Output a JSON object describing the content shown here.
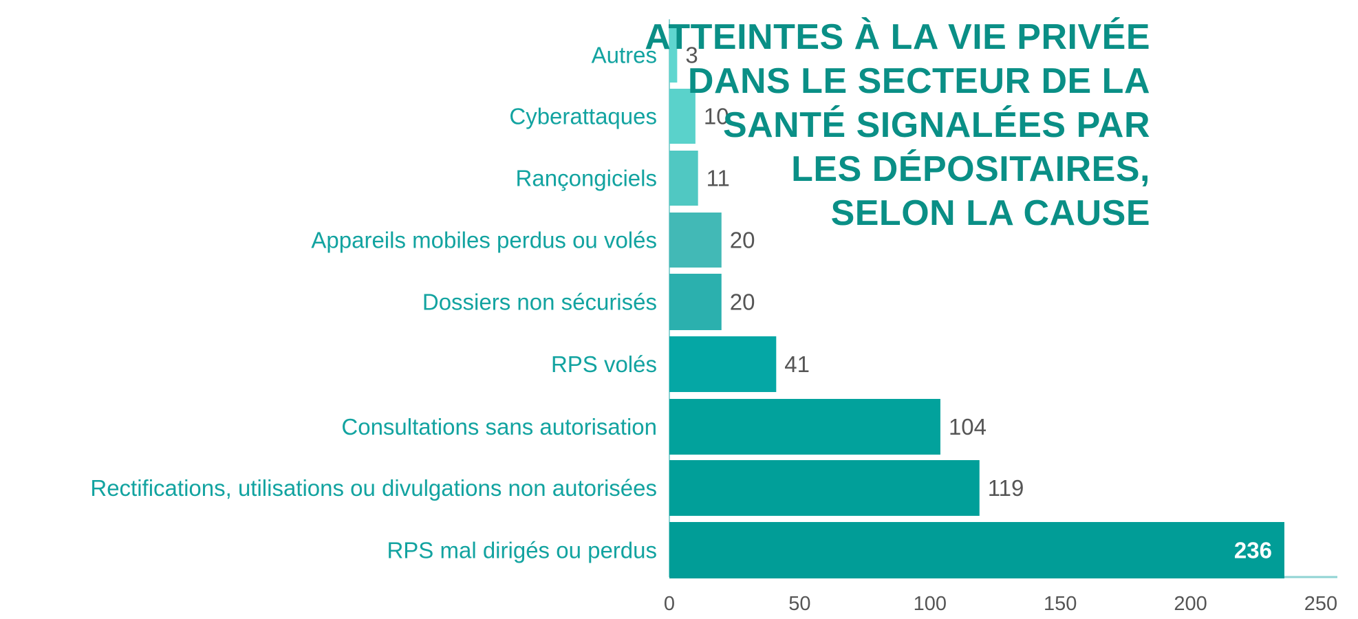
{
  "title_lines": [
    "ATTEINTES À LA VIE PRIVÉE",
    "DANS LE SECTEUR DE LA",
    "SANTÉ SIGNALÉES PAR",
    "LES DÉPOSITAIRES,",
    "SELON LA CAUSE"
  ],
  "colors": {
    "title": "#0a8f86",
    "category_label": "#12a3a0",
    "value_label": "#555555",
    "axis": "#8fd3d3",
    "tick": "#555555",
    "bar_colors": [
      "#5fd6cf",
      "#5ad2cb",
      "#50c8c2",
      "#42b9b6",
      "#2bb0ae",
      "#05a7a5",
      "#02a29c",
      "#019f99",
      "#019d97"
    ]
  },
  "chart_data": {
    "type": "bar",
    "orientation": "horizontal",
    "title": "ATTEINTES À LA VIE PRIVÉE DANS LE SECTEUR DE LA SANTÉ SIGNALÉES PAR LES DÉPOSITAIRES, SELON LA CAUSE",
    "categories": [
      "Autres",
      "Cyberattaques",
      "Rançongiciels",
      "Appareils mobiles perdus ou volés",
      "Dossiers non sécurisés",
      "RPS volés",
      "Consultations sans autorisation",
      "Rectifications, utilisations ou divulgations non autorisées",
      "RPS mal dirigés ou perdus"
    ],
    "values": [
      3,
      10,
      11,
      20,
      20,
      41,
      104,
      119,
      236
    ],
    "value_labels": [
      "3",
      "10",
      "11",
      "20",
      "20",
      "41",
      "104",
      "119",
      "236"
    ],
    "xlim": [
      0,
      250
    ],
    "x_ticks": [
      0,
      50,
      100,
      150,
      200,
      250
    ],
    "x_tick_labels": [
      "0",
      "50",
      "100",
      "150",
      "200",
      "250"
    ],
    "xlabel": "",
    "ylabel": "",
    "grid": false,
    "legend": "none"
  }
}
